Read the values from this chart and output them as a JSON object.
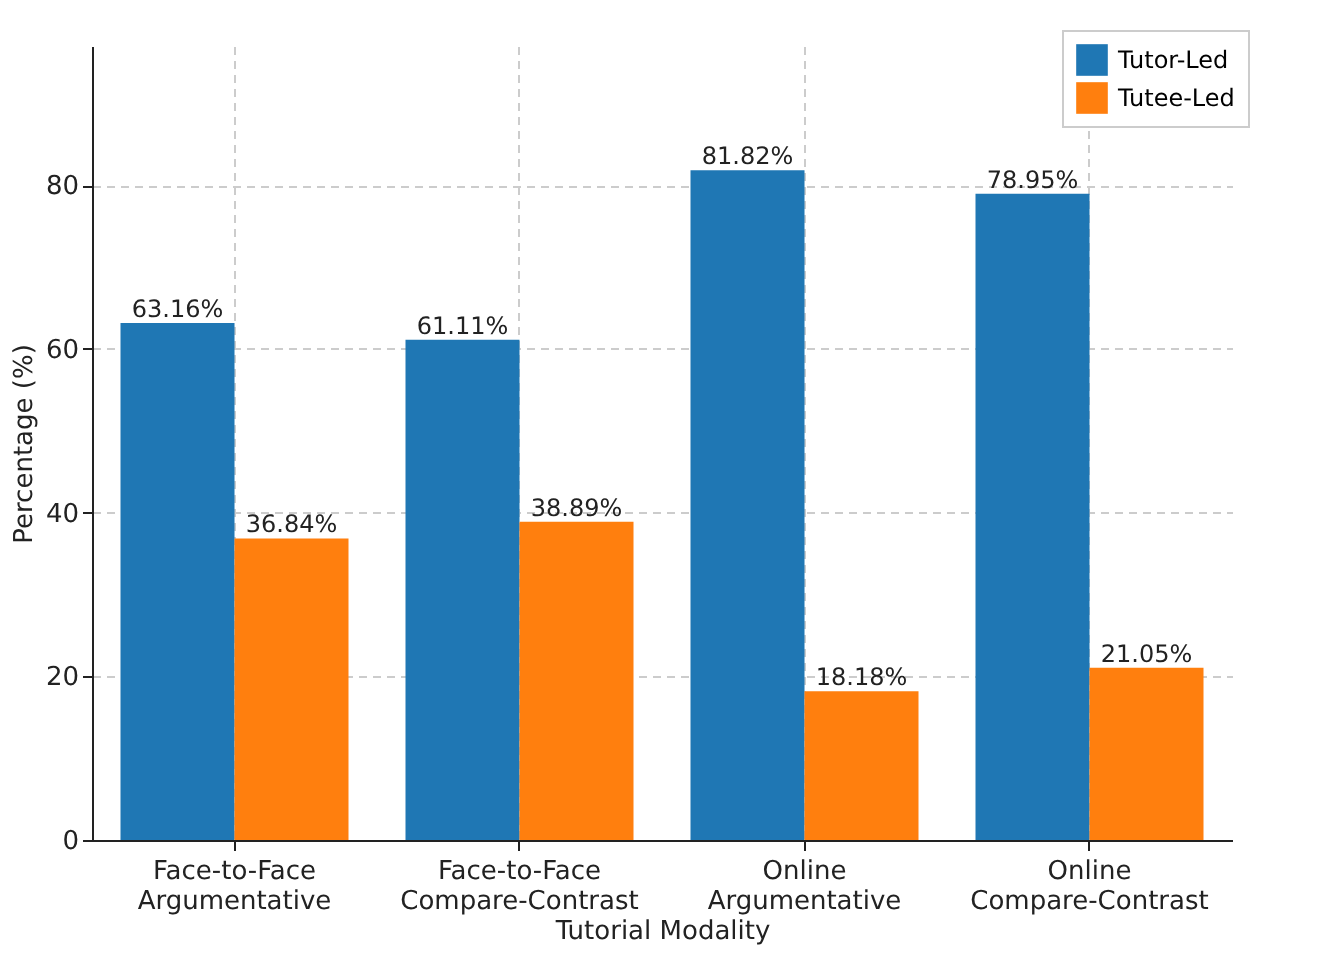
{
  "chart_data": {
    "type": "bar",
    "xlabel": "Tutorial Modality",
    "ylabel": "Percentage (%)",
    "categories": [
      "Face-to-Face\nArgumentative",
      "Face-to-Face\nCompare-Contrast",
      "Online\nArgumentative",
      "Online\nCompare-Contrast"
    ],
    "series": [
      {
        "name": "Tutor-Led",
        "color": "#1f77b4",
        "values": [
          63.16,
          61.11,
          81.82,
          78.95
        ],
        "value_labels": [
          "63.16%",
          "61.11%",
          "81.82%",
          "78.95%"
        ]
      },
      {
        "name": "Tutee-Led",
        "color": "#ff7f0e",
        "values": [
          36.84,
          38.89,
          18.18,
          21.05
        ],
        "value_labels": [
          "36.84%",
          "38.89%",
          "18.18%",
          "21.05%"
        ]
      }
    ],
    "ylim": [
      0,
      97
    ],
    "yticks": [
      0,
      20,
      40,
      60,
      80
    ],
    "grid": true,
    "legend": "top right"
  }
}
